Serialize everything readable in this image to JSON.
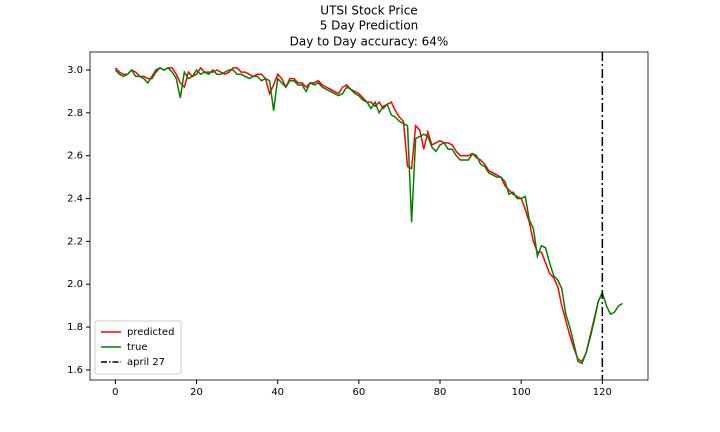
{
  "chart_data": {
    "type": "line",
    "title": [
      "UTSI Stock Price",
      "5 Day Prediction",
      "Day to Day accuracy: 64%"
    ],
    "series": [
      {
        "name": "predicted",
        "color": "#ff0000",
        "x": [
          0,
          1,
          2,
          3,
          4,
          5,
          6,
          7,
          8,
          9,
          10,
          11,
          12,
          13,
          14,
          15,
          16,
          17,
          18,
          19,
          20,
          21,
          22,
          23,
          24,
          25,
          26,
          27,
          28,
          29,
          30,
          31,
          32,
          33,
          34,
          35,
          36,
          37,
          38,
          39,
          40,
          41,
          42,
          43,
          44,
          45,
          46,
          47,
          48,
          49,
          50,
          51,
          52,
          53,
          54,
          55,
          56,
          57,
          58,
          59,
          60,
          61,
          62,
          63,
          64,
          65,
          66,
          67,
          68,
          69,
          70,
          71,
          72,
          73,
          74,
          75,
          76,
          77,
          78,
          79,
          80,
          81,
          82,
          83,
          84,
          85,
          86,
          87,
          88,
          89,
          90,
          91,
          92,
          93,
          94,
          95,
          96,
          97,
          98,
          99,
          100,
          101,
          102,
          103,
          104,
          105,
          106,
          107,
          108,
          109,
          110,
          111,
          112,
          113,
          114,
          115,
          116,
          117,
          118,
          119,
          120
        ],
        "values": [
          3.01,
          2.99,
          2.98,
          2.98,
          3.0,
          2.99,
          2.97,
          2.97,
          2.96,
          2.96,
          2.99,
          3.01,
          3.0,
          3.01,
          3.01,
          2.98,
          2.94,
          2.92,
          2.99,
          2.97,
          2.98,
          3.01,
          2.99,
          2.99,
          2.99,
          3.0,
          2.99,
          2.98,
          2.99,
          3.01,
          3.01,
          2.99,
          2.99,
          2.98,
          2.97,
          2.98,
          2.98,
          2.96,
          2.89,
          2.93,
          2.98,
          2.96,
          2.92,
          2.96,
          2.96,
          2.94,
          2.94,
          2.92,
          2.94,
          2.94,
          2.95,
          2.93,
          2.92,
          2.91,
          2.9,
          2.89,
          2.92,
          2.93,
          2.91,
          2.9,
          2.89,
          2.87,
          2.85,
          2.85,
          2.83,
          2.85,
          2.82,
          2.84,
          2.85,
          2.81,
          2.78,
          2.76,
          2.55,
          2.54,
          2.74,
          2.72,
          2.63,
          2.71,
          2.65,
          2.66,
          2.67,
          2.66,
          2.66,
          2.65,
          2.62,
          2.6,
          2.6,
          2.6,
          2.61,
          2.59,
          2.58,
          2.56,
          2.53,
          2.52,
          2.51,
          2.5,
          2.46,
          2.44,
          2.42,
          2.41,
          2.4,
          2.35,
          2.29,
          2.2,
          2.15,
          2.15,
          2.1,
          2.05,
          2.03,
          1.99,
          1.9,
          1.83,
          1.76,
          1.7,
          1.65,
          1.64,
          1.68,
          1.76,
          1.84,
          1.92,
          1.96
        ]
      },
      {
        "name": "true",
        "color": "#008000",
        "x": [
          0,
          1,
          2,
          3,
          4,
          5,
          6,
          7,
          8,
          9,
          10,
          11,
          12,
          13,
          14,
          15,
          16,
          17,
          18,
          19,
          20,
          21,
          22,
          23,
          24,
          25,
          26,
          27,
          28,
          29,
          30,
          31,
          32,
          33,
          34,
          35,
          36,
          37,
          38,
          39,
          40,
          41,
          42,
          43,
          44,
          45,
          46,
          47,
          48,
          49,
          50,
          51,
          52,
          53,
          54,
          55,
          56,
          57,
          58,
          59,
          60,
          61,
          62,
          63,
          64,
          65,
          66,
          67,
          68,
          69,
          70,
          71,
          72,
          73,
          74,
          75,
          76,
          77,
          78,
          79,
          80,
          81,
          82,
          83,
          84,
          85,
          86,
          87,
          88,
          89,
          90,
          91,
          92,
          93,
          94,
          95,
          96,
          97,
          98,
          99,
          100,
          101,
          102,
          103,
          104,
          105,
          106,
          107,
          108,
          109,
          110,
          111,
          112,
          113,
          114,
          115,
          116,
          117,
          118,
          119,
          120,
          121,
          122,
          123,
          124,
          125
        ],
        "values": [
          3.0,
          2.98,
          2.97,
          2.98,
          3.0,
          2.97,
          2.97,
          2.96,
          2.94,
          2.97,
          3.0,
          3.01,
          3.0,
          3.01,
          2.99,
          2.96,
          2.87,
          2.99,
          2.96,
          2.97,
          3.0,
          2.98,
          2.99,
          2.98,
          3.0,
          2.98,
          2.98,
          2.99,
          3.0,
          3.0,
          2.98,
          2.98,
          2.97,
          2.96,
          2.97,
          2.97,
          2.95,
          2.96,
          2.95,
          2.81,
          2.96,
          2.94,
          2.92,
          2.95,
          2.95,
          2.93,
          2.93,
          2.9,
          2.94,
          2.93,
          2.94,
          2.92,
          2.91,
          2.9,
          2.89,
          2.88,
          2.89,
          2.92,
          2.91,
          2.89,
          2.88,
          2.86,
          2.85,
          2.82,
          2.85,
          2.8,
          2.83,
          2.84,
          2.79,
          2.78,
          2.76,
          2.75,
          2.74,
          2.29,
          2.68,
          2.69,
          2.7,
          2.69,
          2.64,
          2.62,
          2.65,
          2.66,
          2.63,
          2.63,
          2.6,
          2.58,
          2.58,
          2.58,
          2.61,
          2.6,
          2.56,
          2.55,
          2.52,
          2.51,
          2.5,
          2.5,
          2.48,
          2.42,
          2.43,
          2.4,
          2.4,
          2.41,
          2.3,
          2.26,
          2.13,
          2.18,
          2.17,
          2.1,
          2.04,
          2.02,
          1.98,
          1.86,
          1.8,
          1.72,
          1.64,
          1.63,
          1.68,
          1.75,
          1.83,
          1.92,
          1.96,
          1.9,
          1.86,
          1.87,
          1.9,
          1.91
        ]
      }
    ],
    "vline": {
      "x": 120,
      "name": "april 27",
      "color": "#000000"
    },
    "xlim": [
      -6.25,
      131.25
    ],
    "xticks": [
      0,
      20,
      40,
      60,
      80,
      100,
      120
    ],
    "ylim": [
      1.553,
      3.084
    ],
    "yticks": [
      1.6,
      1.8,
      {
        "value": 2,
        "label": "2.0"
      },
      2.2,
      2.4,
      2.6,
      2.8,
      {
        "value": 3,
        "label": "3.0"
      }
    ],
    "legend": "lower left"
  }
}
